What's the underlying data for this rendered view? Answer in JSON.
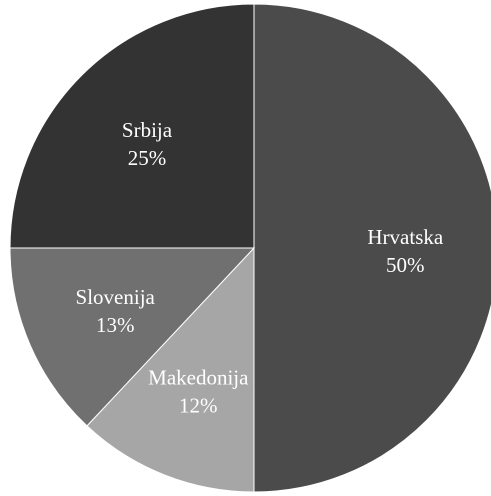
{
  "chart_data": {
    "type": "pie",
    "categories": [
      "Hrvatska",
      "Makedonija",
      "Slovenija",
      "Srbija"
    ],
    "values": [
      50,
      12,
      13,
      25
    ],
    "value_labels": [
      "50%",
      "12%",
      "13%",
      "25%"
    ],
    "colors": [
      "#4b4b4b",
      "#a6a6a6",
      "#707070",
      "#333333"
    ],
    "title": "",
    "legend": "none",
    "label_position": "inside"
  }
}
